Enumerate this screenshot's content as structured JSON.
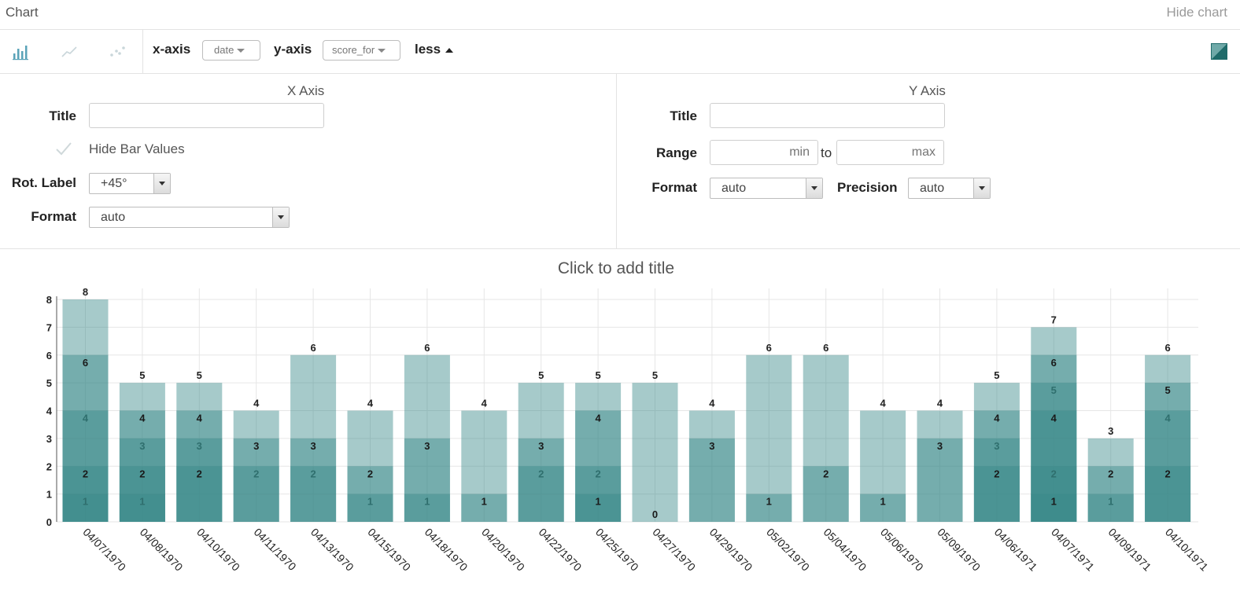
{
  "header": {
    "title": "Chart",
    "hide_chart": "Hide chart"
  },
  "toolbar": {
    "chart_type_icons": [
      "bar-chart-icon",
      "line-chart-icon",
      "scatter-chart-icon"
    ],
    "active_type": "bar",
    "x_axis_label": "x-axis",
    "x_axis_value": "date",
    "y_axis_label": "y-axis",
    "y_axis_value": "score_for",
    "less_label": "less",
    "color_swatch": "#3a8a89"
  },
  "x_axis_settings": {
    "section_title": "X Axis",
    "title_label": "Title",
    "title_value": "",
    "hide_bar_values": "Hide Bar Values",
    "rot_label": "Rot. Label",
    "rot_value": "+45°",
    "format_label": "Format",
    "format_value": "auto"
  },
  "y_axis_settings": {
    "section_title": "Y Axis",
    "title_label": "Title",
    "title_value": "",
    "range_label": "Range",
    "min_placeholder": "min",
    "to_label": "to",
    "max_placeholder": "max",
    "format_label": "Format",
    "format_value": "auto",
    "precision_label": "Precision",
    "precision_value": "auto"
  },
  "chart_title_placeholder": "Click to add title",
  "chart_data": {
    "type": "bar",
    "title": "",
    "xlabel": "",
    "ylabel": "",
    "ylim": [
      0,
      8
    ],
    "y_ticks": [
      0,
      1,
      2,
      3,
      4,
      5,
      6,
      7,
      8
    ],
    "grid": true,
    "colors": {
      "bar": "#3a8a89",
      "light": "#77b0af"
    },
    "categories": [
      "04/07/1970",
      "04/08/1970",
      "04/10/1970",
      "04/11/1970",
      "04/13/1970",
      "04/15/1970",
      "04/18/1970",
      "04/20/1970",
      "04/22/1970",
      "04/25/1970",
      "04/27/1970",
      "04/29/1970",
      "05/02/1970",
      "05/04/1970",
      "05/06/1970",
      "05/09/1970",
      "04/06/1971",
      "04/07/1971",
      "04/09/1971",
      "04/10/1971"
    ],
    "values": [
      8,
      5,
      5,
      4,
      6,
      4,
      6,
      4,
      5,
      5,
      5,
      4,
      6,
      6,
      4,
      4,
      5,
      7,
      3,
      6
    ],
    "overlapping_values": [
      [
        8,
        6,
        4,
        2,
        1
      ],
      [
        5,
        4,
        3,
        2,
        1
      ],
      [
        5,
        4,
        3,
        2
      ],
      [
        4,
        3,
        2
      ],
      [
        6,
        3,
        2
      ],
      [
        4,
        2,
        1
      ],
      [
        6,
        3,
        1
      ],
      [
        4,
        1
      ],
      [
        5,
        3,
        2
      ],
      [
        5,
        4,
        2,
        1
      ],
      [
        5,
        0
      ],
      [
        4,
        3
      ],
      [
        6,
        1
      ],
      [
        6,
        2
      ],
      [
        4,
        1
      ],
      [
        4,
        3
      ],
      [
        5,
        4,
        3,
        2
      ],
      [
        7,
        6,
        5,
        4,
        2,
        1
      ],
      [
        3,
        2,
        1
      ],
      [
        6,
        5,
        4,
        2
      ]
    ]
  }
}
